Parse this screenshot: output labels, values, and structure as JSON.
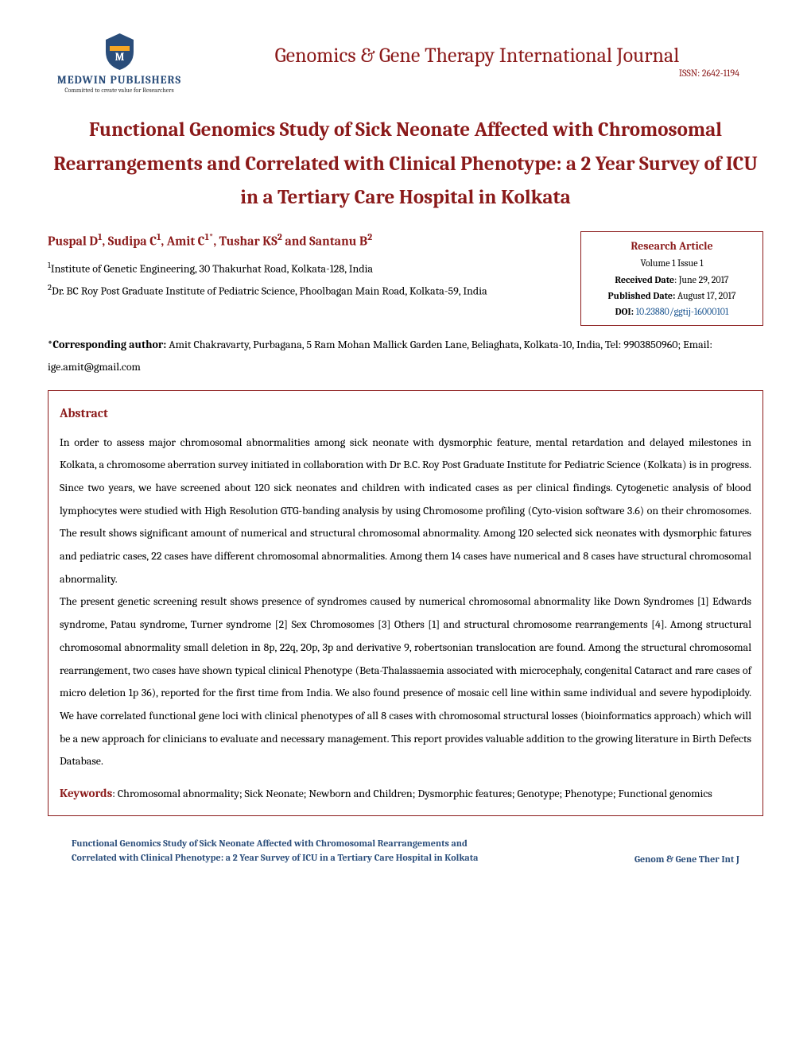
{
  "header": {
    "publisher_name": "MEDWIN PUBLISHERS",
    "publisher_tagline": "Committed to create value for Researchers",
    "journal_name": "Genomics & Gene Therapy International Journal",
    "issn": "ISSN: 2642-1194",
    "logo_colors": {
      "shield": "#2a4d7a",
      "stripe": "#f5a623"
    }
  },
  "title": "Functional Genomics Study of Sick Neonate Affected with Chromosomal Rearrangements and Correlated with Clinical Phenotype: a 2 Year Survey of ICU in a Tertiary Care Hospital in Kolkata",
  "authors_html": "Puspal D<sup>1</sup>, Sudipa C<sup>1</sup>, Amit C<sup>1*</sup>, Tushar KS<sup>2</sup> and Santanu B<sup>2</sup>",
  "affiliations": {
    "a1": "<sup>1</sup>Institute of Genetic Engineering, 30 Thakurhat Road, Kolkata-128, India",
    "a2": "<sup>2</sup>Dr. BC Roy Post Graduate Institute of Pediatric Science, Phoolbagan Main Road, Kolkata-59, India"
  },
  "infobox": {
    "type": "Research Article",
    "volume": "Volume 1 Issue 1",
    "received_label": "Received Date",
    "received": ": June 29, 2017",
    "published_label": "Published Date:",
    "published": " August 17, 2017",
    "doi_label": "DOI:",
    "doi": "10.23880/ggtij-16000101"
  },
  "corresponding_label": "*Corresponding author:",
  "corresponding": " Amit Chakravarty, Purbagana, 5 Ram Mohan Mallick Garden Lane, Beliaghata, Kolkata-10, India, Tel: 9903850960; Email: ige.amit@gmail.com",
  "abstract": {
    "heading": "Abstract",
    "para1": "In order to assess major chromosomal abnormalities among sick neonate with dysmorphic feature, mental retardation and delayed milestones in Kolkata, a chromosome aberration survey initiated in collaboration with Dr B.C. Roy Post Graduate Institute for Pediatric Science (Kolkata) is in progress. Since two years, we have screened about 120 sick neonates and children with indicated cases as per clinical findings. Cytogenetic analysis of blood lymphocytes were studied with High Resolution GTG-banding analysis by using Chromosome profiling (Cyto-vision software 3.6) on their chromosomes. The result shows significant amount of numerical and structural chromosomal abnormality. Among 120 selected sick neonates with dysmorphic fatures and pediatric cases, 22 cases have different chromosomal abnormalities. Among them 14 cases have numerical and 8 cases have structural chromosomal abnormality.",
    "para2": "The present genetic screening result shows presence of syndromes caused by numerical chromosomal abnormality like Down Syndromes [1] Edwards syndrome, Patau syndrome, Turner syndrome [2] Sex Chromosomes [3] Others [1] and structural chromosome rearrangements [4]. Among structural chromosomal abnormality small deletion in 8p, 22q, 20p, 3p and derivative 9, robertsonian translocation are found. Among the structural chromosomal rearrangement, two cases have shown typical clinical Phenotype (Beta-Thalassaemia associated with microcephaly, congenital Cataract and rare cases of micro deletion 1p 36), reported for the first time from India. We also found presence of mosaic cell line within same individual and severe hypodiploidy. We have correlated functional gene loci with clinical phenotypes of all 8 cases with chromosomal structural losses (bioinformatics approach) which will be a new approach for clinicians to evaluate and necessary management. This report provides valuable addition to the growing literature in Birth Defects Database.",
    "keywords_label": "Keywords",
    "keywords": ": Chromosomal abnormality; Sick Neonate; Newborn and Children; Dysmorphic features; Genotype; Phenotype; Functional genomics"
  },
  "footer": {
    "left": "Functional Genomics Study of Sick Neonate Affected with Chromosomal Rearrangements and Correlated with Clinical Phenotype: a 2 Year Survey of ICU in a Tertiary Care Hospital in Kolkata",
    "right": "Genom & Gene Ther Int J"
  }
}
